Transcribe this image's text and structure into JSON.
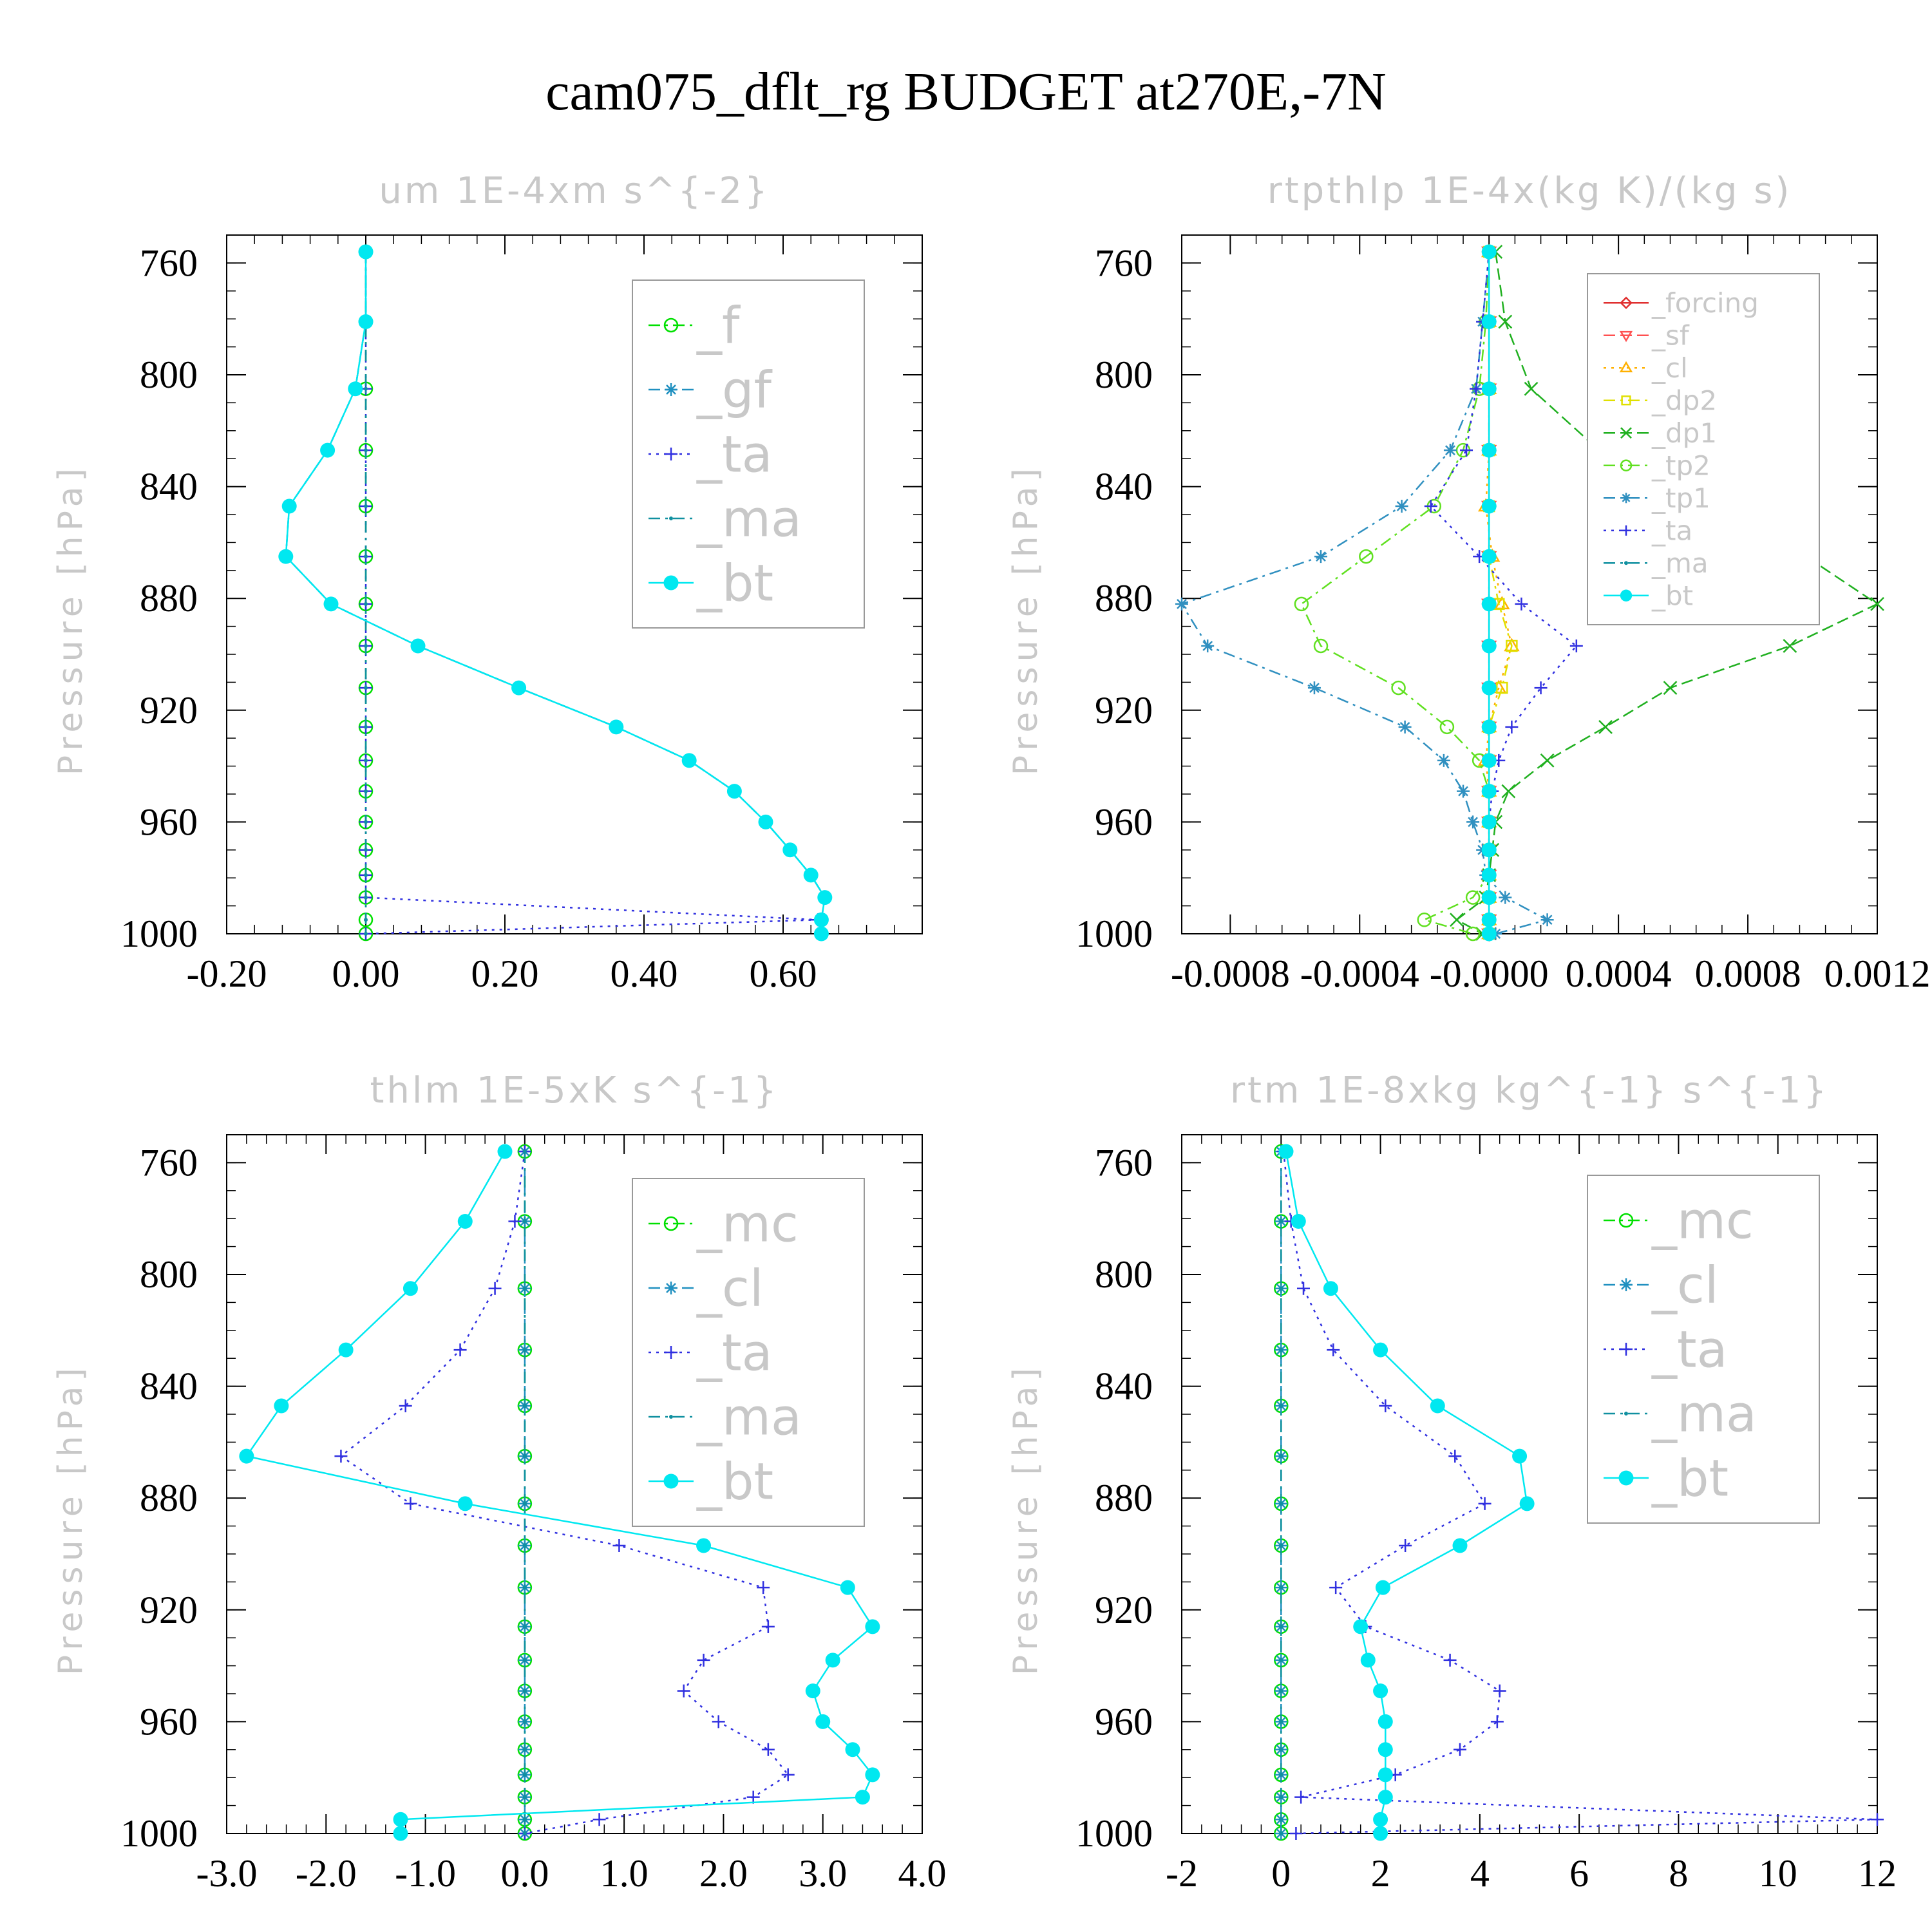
{
  "title": "cam075_dflt_rg  BUDGET at270E,-7N",
  "chart_data": [
    {
      "type": "line",
      "title": "um  1E-4xm s^{-2}",
      "ylabel": "Pressure [hPa]",
      "ylim": [
        1000,
        750
      ],
      "yticks": [
        760,
        800,
        840,
        880,
        920,
        960,
        1000
      ],
      "xlim": [
        -0.2,
        0.8
      ],
      "xticks": [
        -0.2,
        0,
        0.2,
        0.4,
        0.6
      ],
      "xticklabels": [
        "-0.20",
        "0.00",
        "0.20",
        "0.40",
        "0.60"
      ],
      "legend_font": 78,
      "legend_placement": "top-right",
      "y": [
        756,
        781,
        805,
        827,
        847,
        865,
        882,
        897,
        912,
        926,
        938,
        949,
        960,
        970,
        979,
        987,
        995,
        1000
      ],
      "series": [
        {
          "name": "_f",
          "color": "#00e000",
          "dash": "18,8,4,8",
          "marker": "circle-open",
          "values": [
            0,
            0,
            0,
            0,
            0,
            0,
            0,
            0,
            0,
            0,
            0,
            0,
            0,
            0,
            0,
            0,
            0,
            0
          ]
        },
        {
          "name": "_gf",
          "color": "#2090c0",
          "dash": "18,8",
          "marker": "star",
          "values": [
            0,
            0,
            -0.015,
            -0.055,
            -0.11,
            -0.115,
            -0.05,
            0.075,
            0.22,
            0.36,
            0.465,
            0.53,
            0.575,
            0.61,
            0.64,
            0.66,
            0.655,
            0.655
          ]
        },
        {
          "name": "_ta",
          "color": "#3030e0",
          "dash": "4,8",
          "marker": "plus",
          "values": [
            0,
            0,
            0,
            0,
            0,
            0,
            0,
            0,
            0,
            0,
            0,
            0,
            0,
            0,
            0,
            0,
            0.65,
            0
          ]
        },
        {
          "name": "_ma",
          "color": "#1090a0",
          "dash": "18,8,4,8",
          "marker": "dot-small",
          "values": [
            0,
            0,
            0,
            0,
            0,
            0,
            0,
            0,
            0,
            0,
            0,
            0,
            0,
            0,
            0,
            0,
            0,
            0
          ]
        },
        {
          "name": "_bt",
          "color": "#00e8f0",
          "dash": "",
          "marker": "dot-filled",
          "values": [
            0,
            0,
            -0.015,
            -0.055,
            -0.11,
            -0.115,
            -0.05,
            0.075,
            0.22,
            0.36,
            0.465,
            0.53,
            0.575,
            0.61,
            0.64,
            0.66,
            0.655,
            0.655
          ]
        }
      ]
    },
    {
      "type": "line",
      "title": "rtpthlp  1E-4x(kg K)/(kg s)",
      "ylabel": "Pressure [hPa]",
      "ylim": [
        1000,
        750
      ],
      "yticks": [
        760,
        800,
        840,
        880,
        920,
        960,
        1000
      ],
      "xlim": [
        -0.00095,
        0.0012
      ],
      "xticks": [
        -0.0008,
        -0.0004,
        0,
        0.0004,
        0.0008,
        0.0012
      ],
      "xticklabels": [
        "-0.0008",
        "-0.0004",
        "-0.0000",
        "0.0004",
        "0.0008",
        "0.0012"
      ],
      "legend_font": 42,
      "legend_placement": "top-right",
      "y": [
        756,
        781,
        805,
        827,
        847,
        865,
        882,
        897,
        912,
        926,
        938,
        949,
        960,
        970,
        979,
        987,
        995,
        1000
      ],
      "series": [
        {
          "name": "_forcing",
          "color": "#e03030",
          "dash": "",
          "marker": "diamond-open",
          "values": [
            0,
            0,
            0,
            0,
            0,
            0,
            0,
            0,
            0,
            0,
            0,
            0,
            0,
            0,
            0,
            0,
            0,
            0
          ]
        },
        {
          "name": "_sf",
          "color": "#ff5050",
          "dash": "18,8",
          "marker": "triangle-down",
          "values": [
            0,
            0,
            0,
            0,
            0,
            0,
            0,
            0,
            0,
            0,
            0,
            0,
            0,
            0,
            0,
            0,
            0,
            0
          ]
        },
        {
          "name": "_cl",
          "color": "#ffb000",
          "dash": "4,8",
          "marker": "triangle-up",
          "values": [
            0,
            0,
            0,
            0,
            -1e-05,
            1e-05,
            4e-05,
            7e-05,
            3e-05,
            0,
            -1e-05,
            0,
            0,
            0,
            0,
            0,
            0,
            0
          ]
        },
        {
          "name": "_dp2",
          "color": "#e0e000",
          "dash": "18,8,4,8",
          "marker": "square-open",
          "values": [
            0,
            0,
            0,
            0,
            0,
            0,
            3e-05,
            7e-05,
            4e-05,
            0,
            0,
            0,
            0,
            0,
            0,
            0,
            0,
            0
          ]
        },
        {
          "name": "_dp1",
          "color": "#20b020",
          "dash": "18,8",
          "marker": "cross",
          "values": [
            2e-05,
            5e-05,
            0.00013,
            0.00034,
            0.0006,
            0.00098,
            0.0012,
            0.00093,
            0.00056,
            0.00036,
            0.00018,
            6e-05,
            2e-05,
            1e-05,
            0,
            -1e-05,
            -0.0001,
            -2e-05
          ]
        },
        {
          "name": "_tp2",
          "color": "#60e020",
          "dash": "18,8,4,8",
          "marker": "circle-open",
          "values": [
            0,
            -1e-05,
            -3e-05,
            -8e-05,
            -0.00017,
            -0.00038,
            -0.00058,
            -0.00052,
            -0.00028,
            -0.00013,
            -3e-05,
            0,
            0,
            0,
            0,
            -5e-05,
            -0.0002,
            -5e-05
          ]
        },
        {
          "name": "_tp1",
          "color": "#3090c0",
          "dash": "18,8,4,8",
          "marker": "star",
          "values": [
            0,
            -2e-05,
            -4e-05,
            -0.00012,
            -0.00027,
            -0.00052,
            -0.00095,
            -0.00087,
            -0.00054,
            -0.00026,
            -0.00014,
            -8e-05,
            -5e-05,
            -2e-05,
            -1e-05,
            5e-05,
            0.00018,
            2e-05
          ]
        },
        {
          "name": "_ta",
          "color": "#3030e0",
          "dash": "4,8",
          "marker": "plus",
          "values": [
            0,
            -2e-05,
            -4e-05,
            -7e-05,
            -0.00018,
            -3e-05,
            0.0001,
            0.00027,
            0.00016,
            7e-05,
            3e-05,
            1e-05,
            0,
            0,
            0,
            0,
            0,
            0
          ]
        },
        {
          "name": "_ma",
          "color": "#1090a0",
          "dash": "18,8,4,8",
          "marker": "dot-small",
          "values": [
            0,
            0,
            0,
            0,
            0,
            0,
            0,
            0,
            0,
            0,
            0,
            0,
            0,
            0,
            0,
            0,
            0,
            0
          ]
        },
        {
          "name": "_bt",
          "color": "#00e8f0",
          "dash": "",
          "marker": "dot-filled",
          "values": [
            0,
            0,
            0,
            0,
            0,
            0,
            0,
            0,
            0,
            0,
            0,
            0,
            0,
            0,
            0,
            0,
            0,
            0
          ]
        }
      ]
    },
    {
      "type": "line",
      "title": "thlm  1E-5xK s^{-1}",
      "ylabel": "Pressure [hPa]",
      "ylim": [
        1000,
        750
      ],
      "yticks": [
        760,
        800,
        840,
        880,
        920,
        960,
        1000
      ],
      "xlim": [
        -3.0,
        4.0
      ],
      "xticks": [
        -3,
        -2,
        -1,
        0,
        1,
        2,
        3,
        4
      ],
      "xticklabels": [
        "-3.0",
        "-2.0",
        "-1.0",
        "0.0",
        "1.0",
        "2.0",
        "3.0",
        "4.0"
      ],
      "legend_font": 78,
      "legend_placement": "top-right",
      "y": [
        756,
        781,
        805,
        827,
        847,
        865,
        882,
        897,
        912,
        926,
        938,
        949,
        960,
        970,
        979,
        987,
        995,
        1000
      ],
      "series": [
        {
          "name": "_mc",
          "color": "#00e000",
          "dash": "18,8,4,8",
          "marker": "circle-open",
          "values": [
            0,
            0,
            0,
            0,
            0,
            0,
            0,
            0,
            0,
            0,
            0,
            0,
            0,
            0,
            0,
            0,
            0,
            0
          ]
        },
        {
          "name": "_cl",
          "color": "#2090c0",
          "dash": "18,8",
          "marker": "star",
          "values": [
            0,
            0,
            0,
            0,
            0,
            0,
            0,
            0,
            0,
            0,
            0,
            0,
            0,
            0,
            0,
            0,
            0,
            0
          ]
        },
        {
          "name": "_ta",
          "color": "#3030e0",
          "dash": "4,8",
          "marker": "plus",
          "values": [
            0,
            -0.1,
            -0.3,
            -0.65,
            -1.2,
            -1.85,
            -1.15,
            0.95,
            2.4,
            2.45,
            1.8,
            1.6,
            1.95,
            2.45,
            2.65,
            2.3,
            0.75,
            0
          ]
        },
        {
          "name": "_ma",
          "color": "#1090a0",
          "dash": "18,8,4,8",
          "marker": "dot-small",
          "values": [
            0,
            0,
            0,
            0,
            0,
            0,
            0,
            0,
            0,
            0,
            0,
            0,
            0,
            0,
            0,
            0,
            0,
            0
          ]
        },
        {
          "name": "_bt",
          "color": "#00e8f0",
          "dash": "",
          "marker": "dot-filled",
          "values": [
            -0.2,
            -0.6,
            -1.15,
            -1.8,
            -2.45,
            -2.8,
            -0.6,
            1.8,
            3.25,
            3.5,
            3.1,
            2.9,
            3.0,
            3.3,
            3.5,
            3.4,
            -1.25,
            -1.25
          ]
        }
      ]
    },
    {
      "type": "line",
      "title": "rtm  1E-8xkg kg^{-1} s^{-1}",
      "ylabel": "Pressure [hPa]",
      "ylim": [
        1000,
        750
      ],
      "yticks": [
        760,
        800,
        840,
        880,
        920,
        960,
        1000
      ],
      "xlim": [
        -2,
        12
      ],
      "xticks": [
        -2,
        0,
        2,
        4,
        6,
        8,
        10,
        12
      ],
      "xticklabels": [
        "-2",
        "0",
        "2",
        "4",
        "6",
        "8",
        "10",
        "12"
      ],
      "legend_font": 78,
      "legend_placement": "top-right",
      "y": [
        756,
        781,
        805,
        827,
        847,
        865,
        882,
        897,
        912,
        926,
        938,
        949,
        960,
        970,
        979,
        987,
        995,
        1000
      ],
      "series": [
        {
          "name": "_mc",
          "color": "#00e000",
          "dash": "18,8,4,8",
          "marker": "circle-open",
          "values": [
            0,
            0,
            0,
            0,
            0,
            0,
            0,
            0,
            0,
            0,
            0,
            0,
            0,
            0,
            0,
            0,
            0,
            0
          ]
        },
        {
          "name": "_cl",
          "color": "#2090c0",
          "dash": "18,8",
          "marker": "star",
          "values": [
            0,
            0,
            0,
            0,
            0,
            0,
            0,
            0,
            0,
            0,
            0,
            0,
            0,
            0,
            0,
            0,
            0,
            0
          ]
        },
        {
          "name": "_ta",
          "color": "#3030e0",
          "dash": "4,8",
          "marker": "plus",
          "values": [
            0.05,
            0.2,
            0.45,
            1.05,
            2.1,
            3.5,
            4.1,
            2.5,
            1.1,
            1.7,
            3.4,
            4.4,
            4.35,
            3.6,
            2.3,
            0.4,
            12,
            0.3
          ]
        },
        {
          "name": "_ma",
          "color": "#1090a0",
          "dash": "18,8,4,8",
          "marker": "dot-small",
          "values": [
            0,
            0,
            0,
            0,
            0,
            0,
            0,
            0,
            0,
            0,
            0,
            0,
            0,
            0,
            0,
            0,
            0,
            0
          ]
        },
        {
          "name": "_bt",
          "color": "#00e8f0",
          "dash": "",
          "marker": "dot-filled",
          "values": [
            0.1,
            0.35,
            1.0,
            2.0,
            3.15,
            4.8,
            4.95,
            3.6,
            2.05,
            1.6,
            1.75,
            2.0,
            2.1,
            2.1,
            2.1,
            2.1,
            2.0,
            2.0
          ]
        }
      ]
    }
  ]
}
